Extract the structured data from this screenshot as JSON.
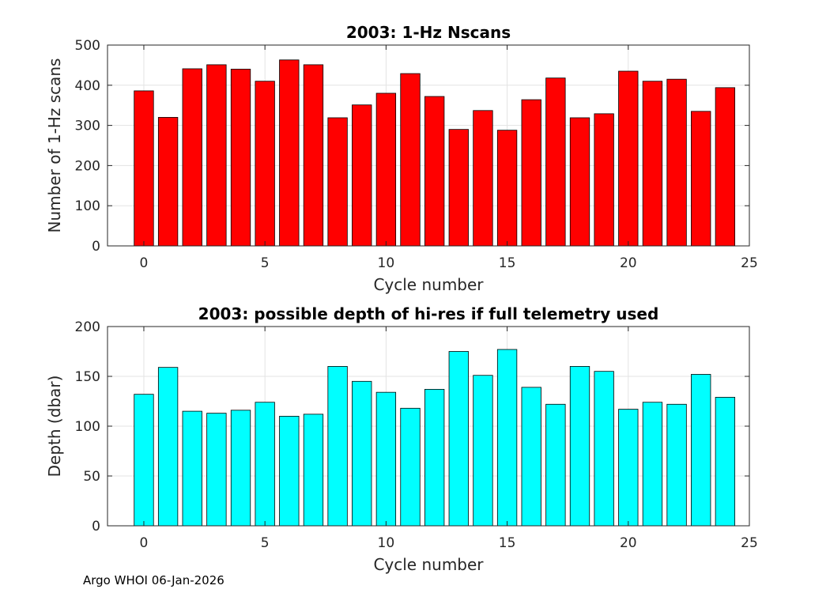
{
  "chart_data": [
    {
      "type": "bar",
      "title": "2003: 1-Hz Nscans",
      "xlabel": "Cycle number",
      "ylabel": "Number of 1-Hz scans",
      "xlim": [
        -1.5,
        25
      ],
      "ylim": [
        0,
        500
      ],
      "xticks": [
        0,
        5,
        10,
        15,
        20,
        25
      ],
      "yticks": [
        0,
        100,
        200,
        300,
        400,
        500
      ],
      "grid": true,
      "bar_color": "#ff0000",
      "categories": [
        0,
        1,
        2,
        3,
        4,
        5,
        6,
        7,
        8,
        9,
        10,
        11,
        12,
        13,
        14,
        15,
        16,
        17,
        18,
        19,
        20,
        21,
        22,
        23,
        24
      ],
      "values": [
        386,
        320,
        441,
        451,
        440,
        410,
        463,
        451,
        319,
        351,
        380,
        429,
        372,
        290,
        337,
        288,
        364,
        418,
        319,
        329,
        435,
        410,
        415,
        335,
        394
      ]
    },
    {
      "type": "bar",
      "title": "2003: possible depth of hi-res if full telemetry used",
      "xlabel": "Cycle number",
      "ylabel": "Depth (dbar)",
      "xlim": [
        -1.5,
        25
      ],
      "ylim": [
        0,
        200
      ],
      "xticks": [
        0,
        5,
        10,
        15,
        20,
        25
      ],
      "yticks": [
        0,
        50,
        100,
        150,
        200
      ],
      "grid": true,
      "bar_color": "#00ffff",
      "categories": [
        0,
        1,
        2,
        3,
        4,
        5,
        6,
        7,
        8,
        9,
        10,
        11,
        12,
        13,
        14,
        15,
        16,
        17,
        18,
        19,
        20,
        21,
        22,
        23,
        24
      ],
      "values": [
        132,
        159,
        115,
        113,
        116,
        124,
        110,
        112,
        160,
        145,
        134,
        118,
        137,
        175,
        151,
        177,
        139,
        122,
        160,
        155,
        117,
        124,
        122,
        152,
        129
      ]
    }
  ],
  "footer": {
    "text": "Argo WHOI 06-Jan-2026"
  }
}
